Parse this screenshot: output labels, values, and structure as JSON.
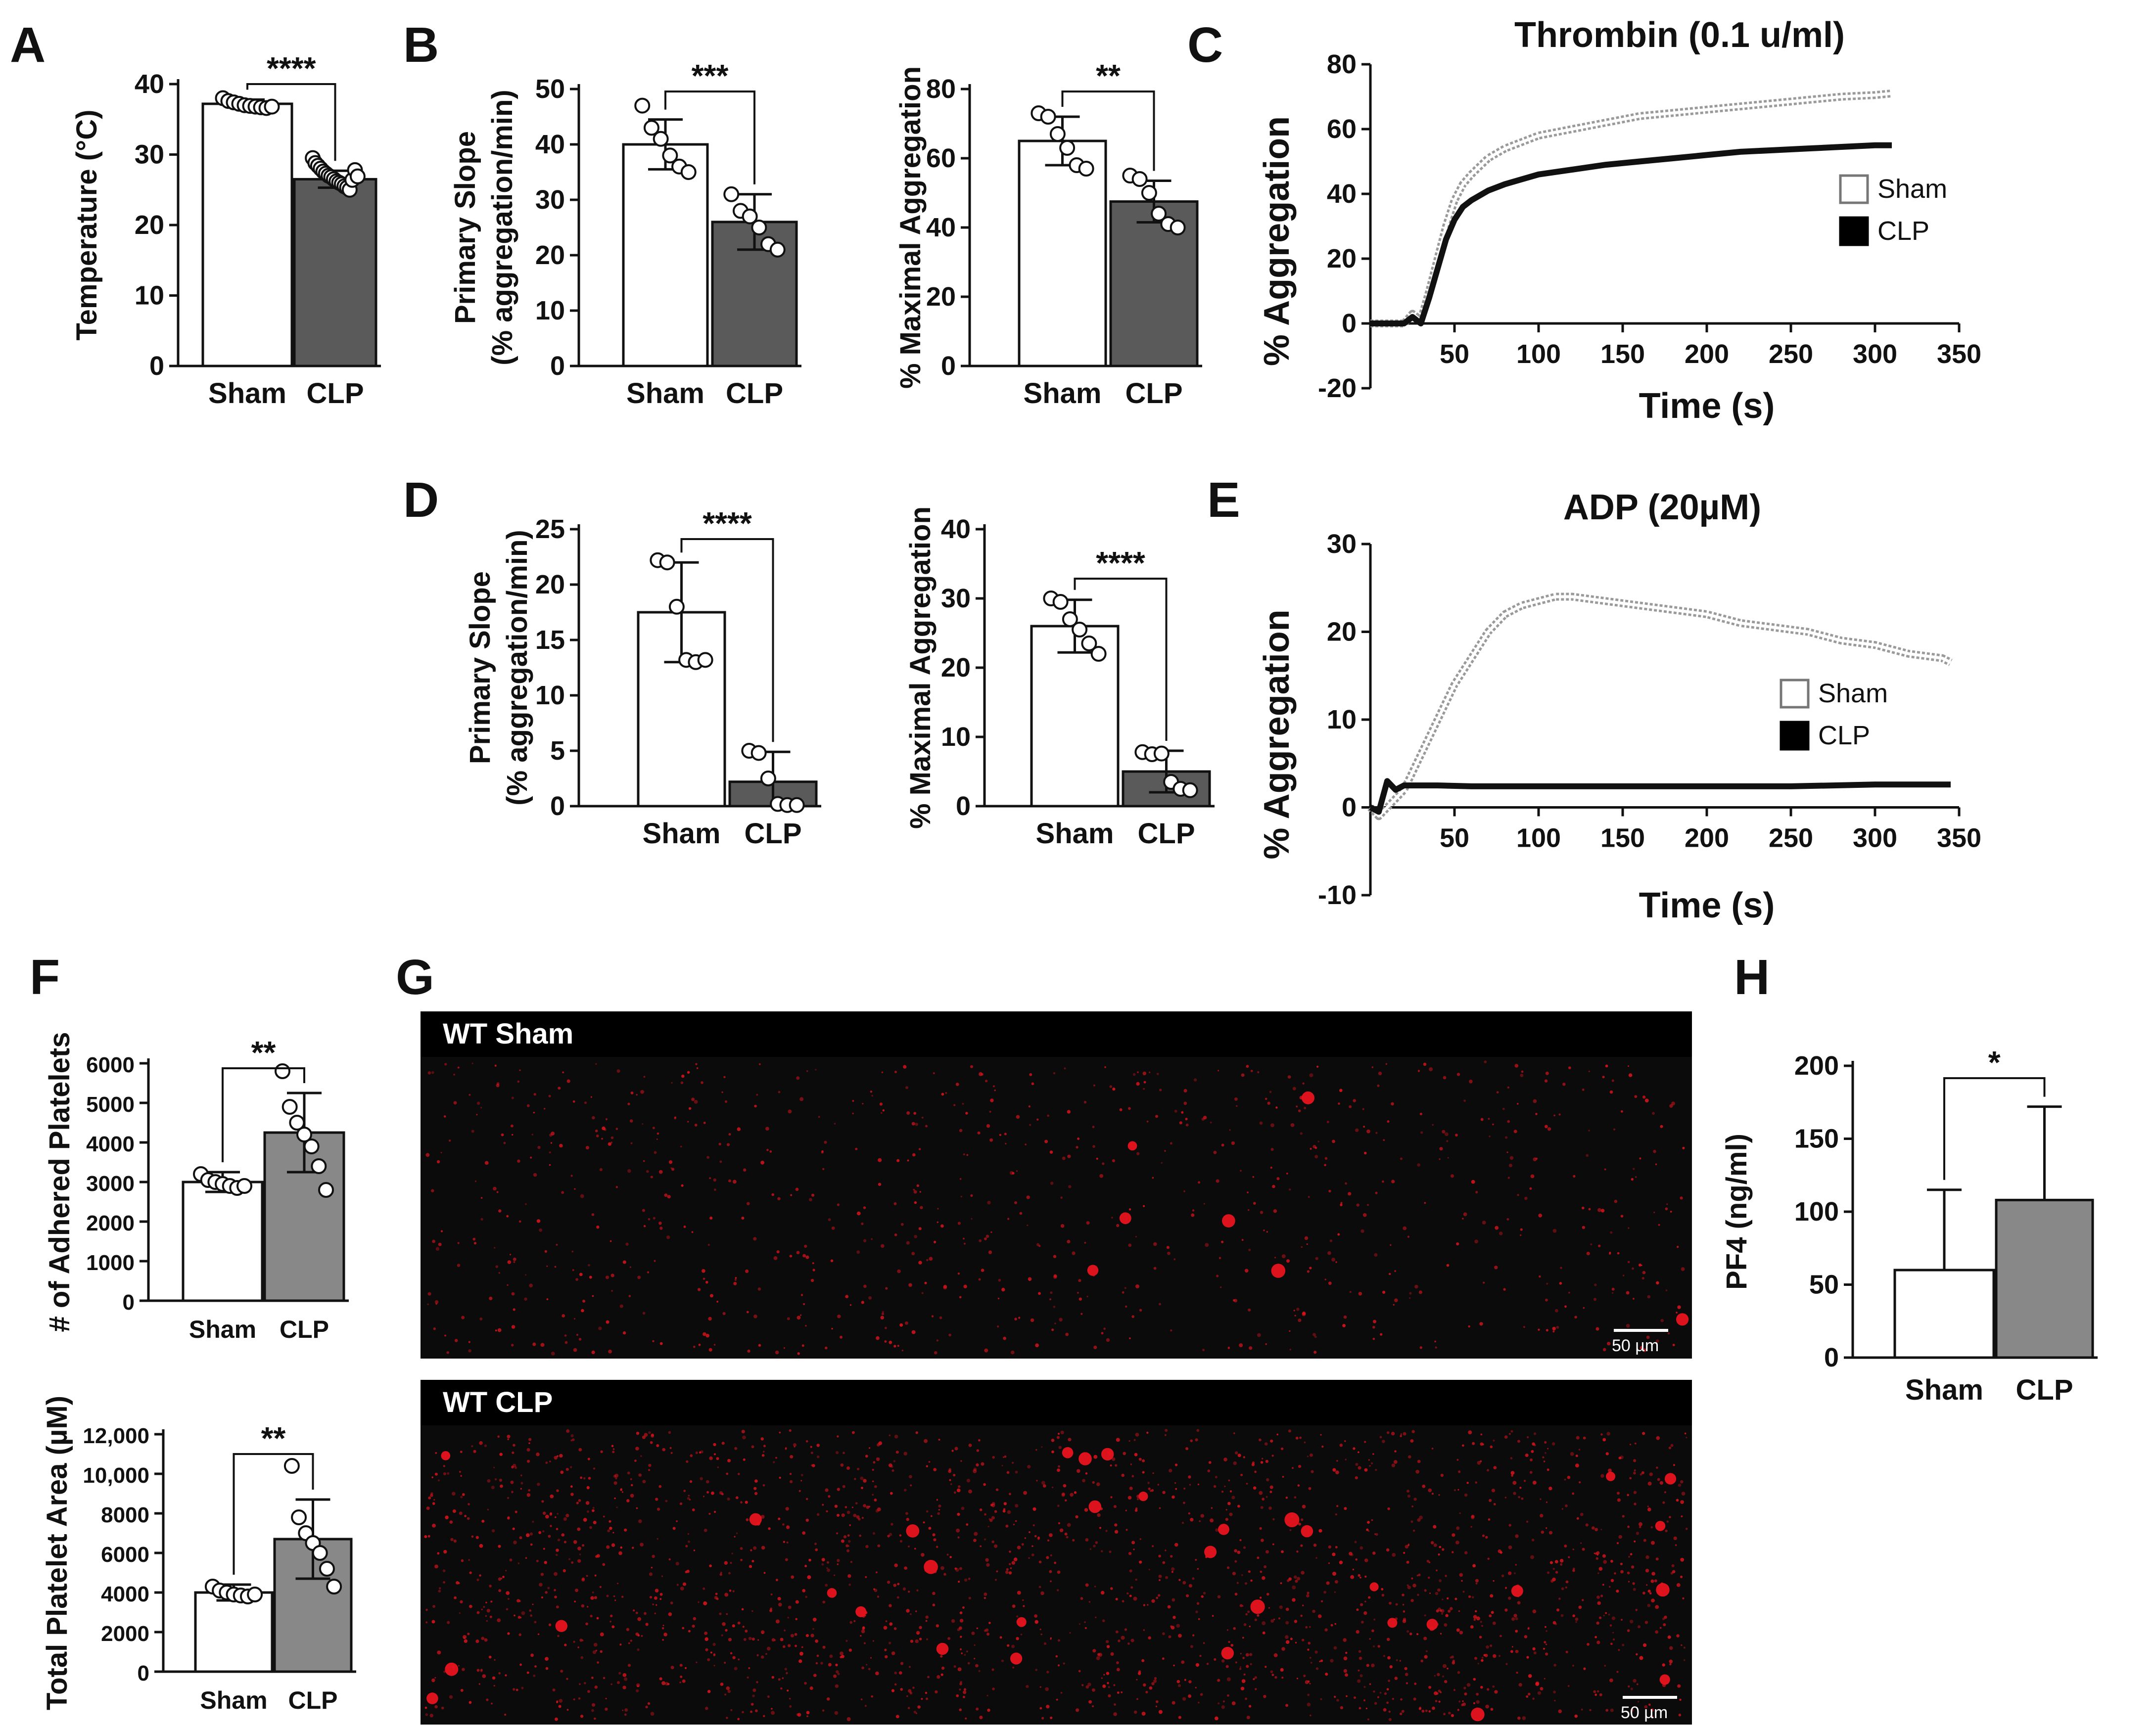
{
  "colors": {
    "sham_fill": "#ffffff",
    "clp_fill": "#5a5a5a",
    "clp_fill_light": "#888888",
    "axis": "#111111",
    "sham_line": "#9a9a9a",
    "clp_line": "#111111",
    "micro_bg": "#0b0b0b",
    "platelet": "#e8141e"
  },
  "chart_data": [
    {
      "id": "A",
      "type": "bar",
      "panel_label": "A",
      "categories": [
        "Sham",
        "CLP"
      ],
      "values": [
        37.2,
        26.5
      ],
      "errors": [
        0.6,
        1.2
      ],
      "points": [
        [
          38,
          37.6,
          37.4,
          37.2,
          37.0,
          36.9,
          36.8,
          36.7,
          36.6,
          36.8
        ],
        [
          29.5,
          28.8,
          28.4,
          28.0,
          27.6,
          27.3,
          27.0,
          26.8,
          26.5,
          26.2,
          26.0,
          25.8,
          25.5,
          25.3,
          25.0,
          26.4,
          27.8,
          26.9
        ]
      ],
      "ylabel": "Temperature (°C)",
      "ylim": [
        0,
        40
      ],
      "yticks": [
        0,
        10,
        20,
        30,
        40
      ],
      "significance": "****"
    },
    {
      "id": "B1",
      "type": "bar",
      "panel_label": "B",
      "categories": [
        "Sham",
        "CLP"
      ],
      "values": [
        40,
        26
      ],
      "errors": [
        4.5,
        5
      ],
      "points": [
        [
          47,
          43,
          41,
          38,
          36,
          35
        ],
        [
          31,
          28,
          27,
          25,
          22,
          21
        ]
      ],
      "ylabel": "Primary Slope",
      "ylabel2": "(% aggregation/min)",
      "ylim": [
        0,
        50
      ],
      "yticks": [
        0,
        10,
        20,
        30,
        40,
        50
      ],
      "significance": "***"
    },
    {
      "id": "B2",
      "type": "bar",
      "categories": [
        "Sham",
        "CLP"
      ],
      "values": [
        65,
        47.5
      ],
      "errors": [
        7,
        6
      ],
      "points": [
        [
          73,
          72,
          67,
          63,
          58,
          57
        ],
        [
          55,
          54,
          50,
          44,
          41,
          40
        ]
      ],
      "ylabel": "% Maximal Aggregation",
      "ylim": [
        0,
        80
      ],
      "yticks": [
        0,
        20,
        40,
        60,
        80
      ],
      "significance": "**"
    },
    {
      "id": "C",
      "type": "line",
      "panel_label": "C",
      "title": "Thrombin (0.1 u/ml)",
      "xlabel": "Time (s)",
      "ylabel": "% Aggregation",
      "xlim": [
        0,
        350
      ],
      "ylim": [
        -20,
        80
      ],
      "xticks": [
        50,
        100,
        150,
        200,
        250,
        300,
        350
      ],
      "yticks": [
        -20,
        0,
        20,
        40,
        60,
        80
      ],
      "series": [
        {
          "name": "Sham",
          "x": [
            0,
            10,
            20,
            25,
            30,
            35,
            40,
            45,
            50,
            55,
            60,
            70,
            80,
            90,
            100,
            120,
            140,
            160,
            180,
            200,
            220,
            240,
            260,
            280,
            300,
            310
          ],
          "y": [
            0,
            0,
            0,
            3,
            1,
            10,
            20,
            30,
            38,
            43,
            46,
            51,
            54,
            56,
            58,
            60,
            62,
            64,
            65,
            66,
            67,
            68,
            69,
            70,
            70.5,
            71
          ]
        },
        {
          "name": "CLP",
          "x": [
            0,
            10,
            20,
            25,
            30,
            35,
            40,
            45,
            50,
            55,
            60,
            70,
            80,
            90,
            100,
            120,
            140,
            160,
            180,
            200,
            220,
            240,
            260,
            280,
            300,
            310
          ],
          "y": [
            0,
            0,
            0,
            2,
            0,
            8,
            17,
            26,
            32,
            36,
            38,
            41,
            43,
            44.5,
            46,
            47.5,
            49,
            50,
            51,
            52,
            53,
            53.5,
            54,
            54.5,
            55,
            55
          ]
        }
      ]
    },
    {
      "id": "D1",
      "type": "bar",
      "panel_label": "D",
      "categories": [
        "Sham",
        "CLP"
      ],
      "values": [
        17.5,
        2.2
      ],
      "errors": [
        4.5,
        2.7
      ],
      "points": [
        [
          22.2,
          22,
          18,
          13.2,
          13,
          13.2
        ],
        [
          5,
          4.8,
          2.5,
          0.2,
          0.1,
          0.1
        ]
      ],
      "ylabel": "Primary Slope",
      "ylabel2": "(% aggregation/min)",
      "ylim": [
        0,
        25
      ],
      "yticks": [
        0,
        5,
        10,
        15,
        20,
        25
      ],
      "significance": "****"
    },
    {
      "id": "D2",
      "type": "bar",
      "categories": [
        "Sham",
        "CLP"
      ],
      "values": [
        26,
        5
      ],
      "errors": [
        3.8,
        3
      ],
      "points": [
        [
          30,
          29.5,
          27,
          25.5,
          23.5,
          22
        ],
        [
          7.8,
          7.5,
          7.6,
          3.5,
          2.5,
          2.3
        ]
      ],
      "ylabel": "% Maximal Aggregation",
      "ylim": [
        0,
        40
      ],
      "yticks": [
        0,
        10,
        20,
        30,
        40
      ],
      "significance": "****"
    },
    {
      "id": "E",
      "type": "line",
      "panel_label": "E",
      "title": "ADP (20µM)",
      "xlabel": "Time (s)",
      "ylabel": "% Aggregation",
      "xlim": [
        0,
        350
      ],
      "ylim": [
        -10,
        30
      ],
      "xticks": [
        50,
        100,
        150,
        200,
        250,
        300,
        350
      ],
      "yticks": [
        -10,
        0,
        10,
        20,
        30
      ],
      "series": [
        {
          "name": "Sham",
          "x": [
            0,
            5,
            10,
            15,
            20,
            30,
            40,
            50,
            60,
            70,
            80,
            90,
            100,
            110,
            120,
            140,
            160,
            180,
            200,
            220,
            240,
            260,
            280,
            300,
            320,
            340,
            345
          ],
          "y": [
            0,
            -1,
            0,
            1,
            2,
            6,
            10,
            14,
            17,
            20,
            22,
            23,
            23.5,
            24,
            24,
            23.5,
            23,
            22.5,
            22,
            21,
            20.5,
            20,
            19,
            18.5,
            17.5,
            17,
            16.5
          ]
        },
        {
          "name": "CLP",
          "x": [
            0,
            5,
            10,
            15,
            20,
            30,
            40,
            60,
            100,
            150,
            200,
            250,
            300,
            345
          ],
          "y": [
            0,
            -0.5,
            3,
            2,
            2.5,
            2.5,
            2.5,
            2.4,
            2.4,
            2.4,
            2.4,
            2.4,
            2.6,
            2.6
          ]
        }
      ]
    },
    {
      "id": "F1",
      "type": "bar",
      "panel_label": "F",
      "categories": [
        "Sham",
        "CLP"
      ],
      "values": [
        3000,
        4250
      ],
      "errors": [
        250,
        1000
      ],
      "points": [
        [
          3200,
          3050,
          3000,
          2950,
          2900,
          2850,
          2900
        ],
        [
          5800,
          4900,
          4500,
          4200,
          3900,
          3400,
          2800
        ]
      ],
      "ylabel": "# of Adhered Platelets",
      "ylim": [
        0,
        6000
      ],
      "yticks": [
        0,
        1000,
        2000,
        3000,
        4000,
        5000,
        6000
      ],
      "significance": "**"
    },
    {
      "id": "F2",
      "type": "bar",
      "categories": [
        "Sham",
        "CLP"
      ],
      "values": [
        4000,
        6700
      ],
      "errors": [
        400,
        2000
      ],
      "points": [
        [
          4300,
          4100,
          4000,
          3900,
          3850,
          3800,
          3900
        ],
        [
          10400,
          7800,
          7000,
          6500,
          6000,
          5200,
          4300
        ]
      ],
      "ylabel": "Total Platelet Area (µM)",
      "ylim": [
        0,
        12000
      ],
      "yticks": [
        0,
        2000,
        4000,
        6000,
        8000,
        10000,
        12000
      ],
      "ytick_labels": [
        "0",
        "2000",
        "4000",
        "6000",
        "8000",
        "10,000",
        "12,000"
      ],
      "significance": "**"
    },
    {
      "id": "H",
      "type": "bar",
      "panel_label": "H",
      "categories": [
        "Sham",
        "CLP"
      ],
      "values": [
        60,
        108
      ],
      "errors": [
        55,
        64
      ],
      "ylabel": "PF4 (ng/ml)",
      "ylim": [
        0,
        200
      ],
      "yticks": [
        0,
        50,
        100,
        150,
        200
      ],
      "significance": "*"
    }
  ],
  "panel_G": {
    "label": "G",
    "images": [
      {
        "title": "WT Sham",
        "scale_bar": "50 µm"
      },
      {
        "title": "WT CLP",
        "scale_bar": "50 µm"
      }
    ]
  }
}
